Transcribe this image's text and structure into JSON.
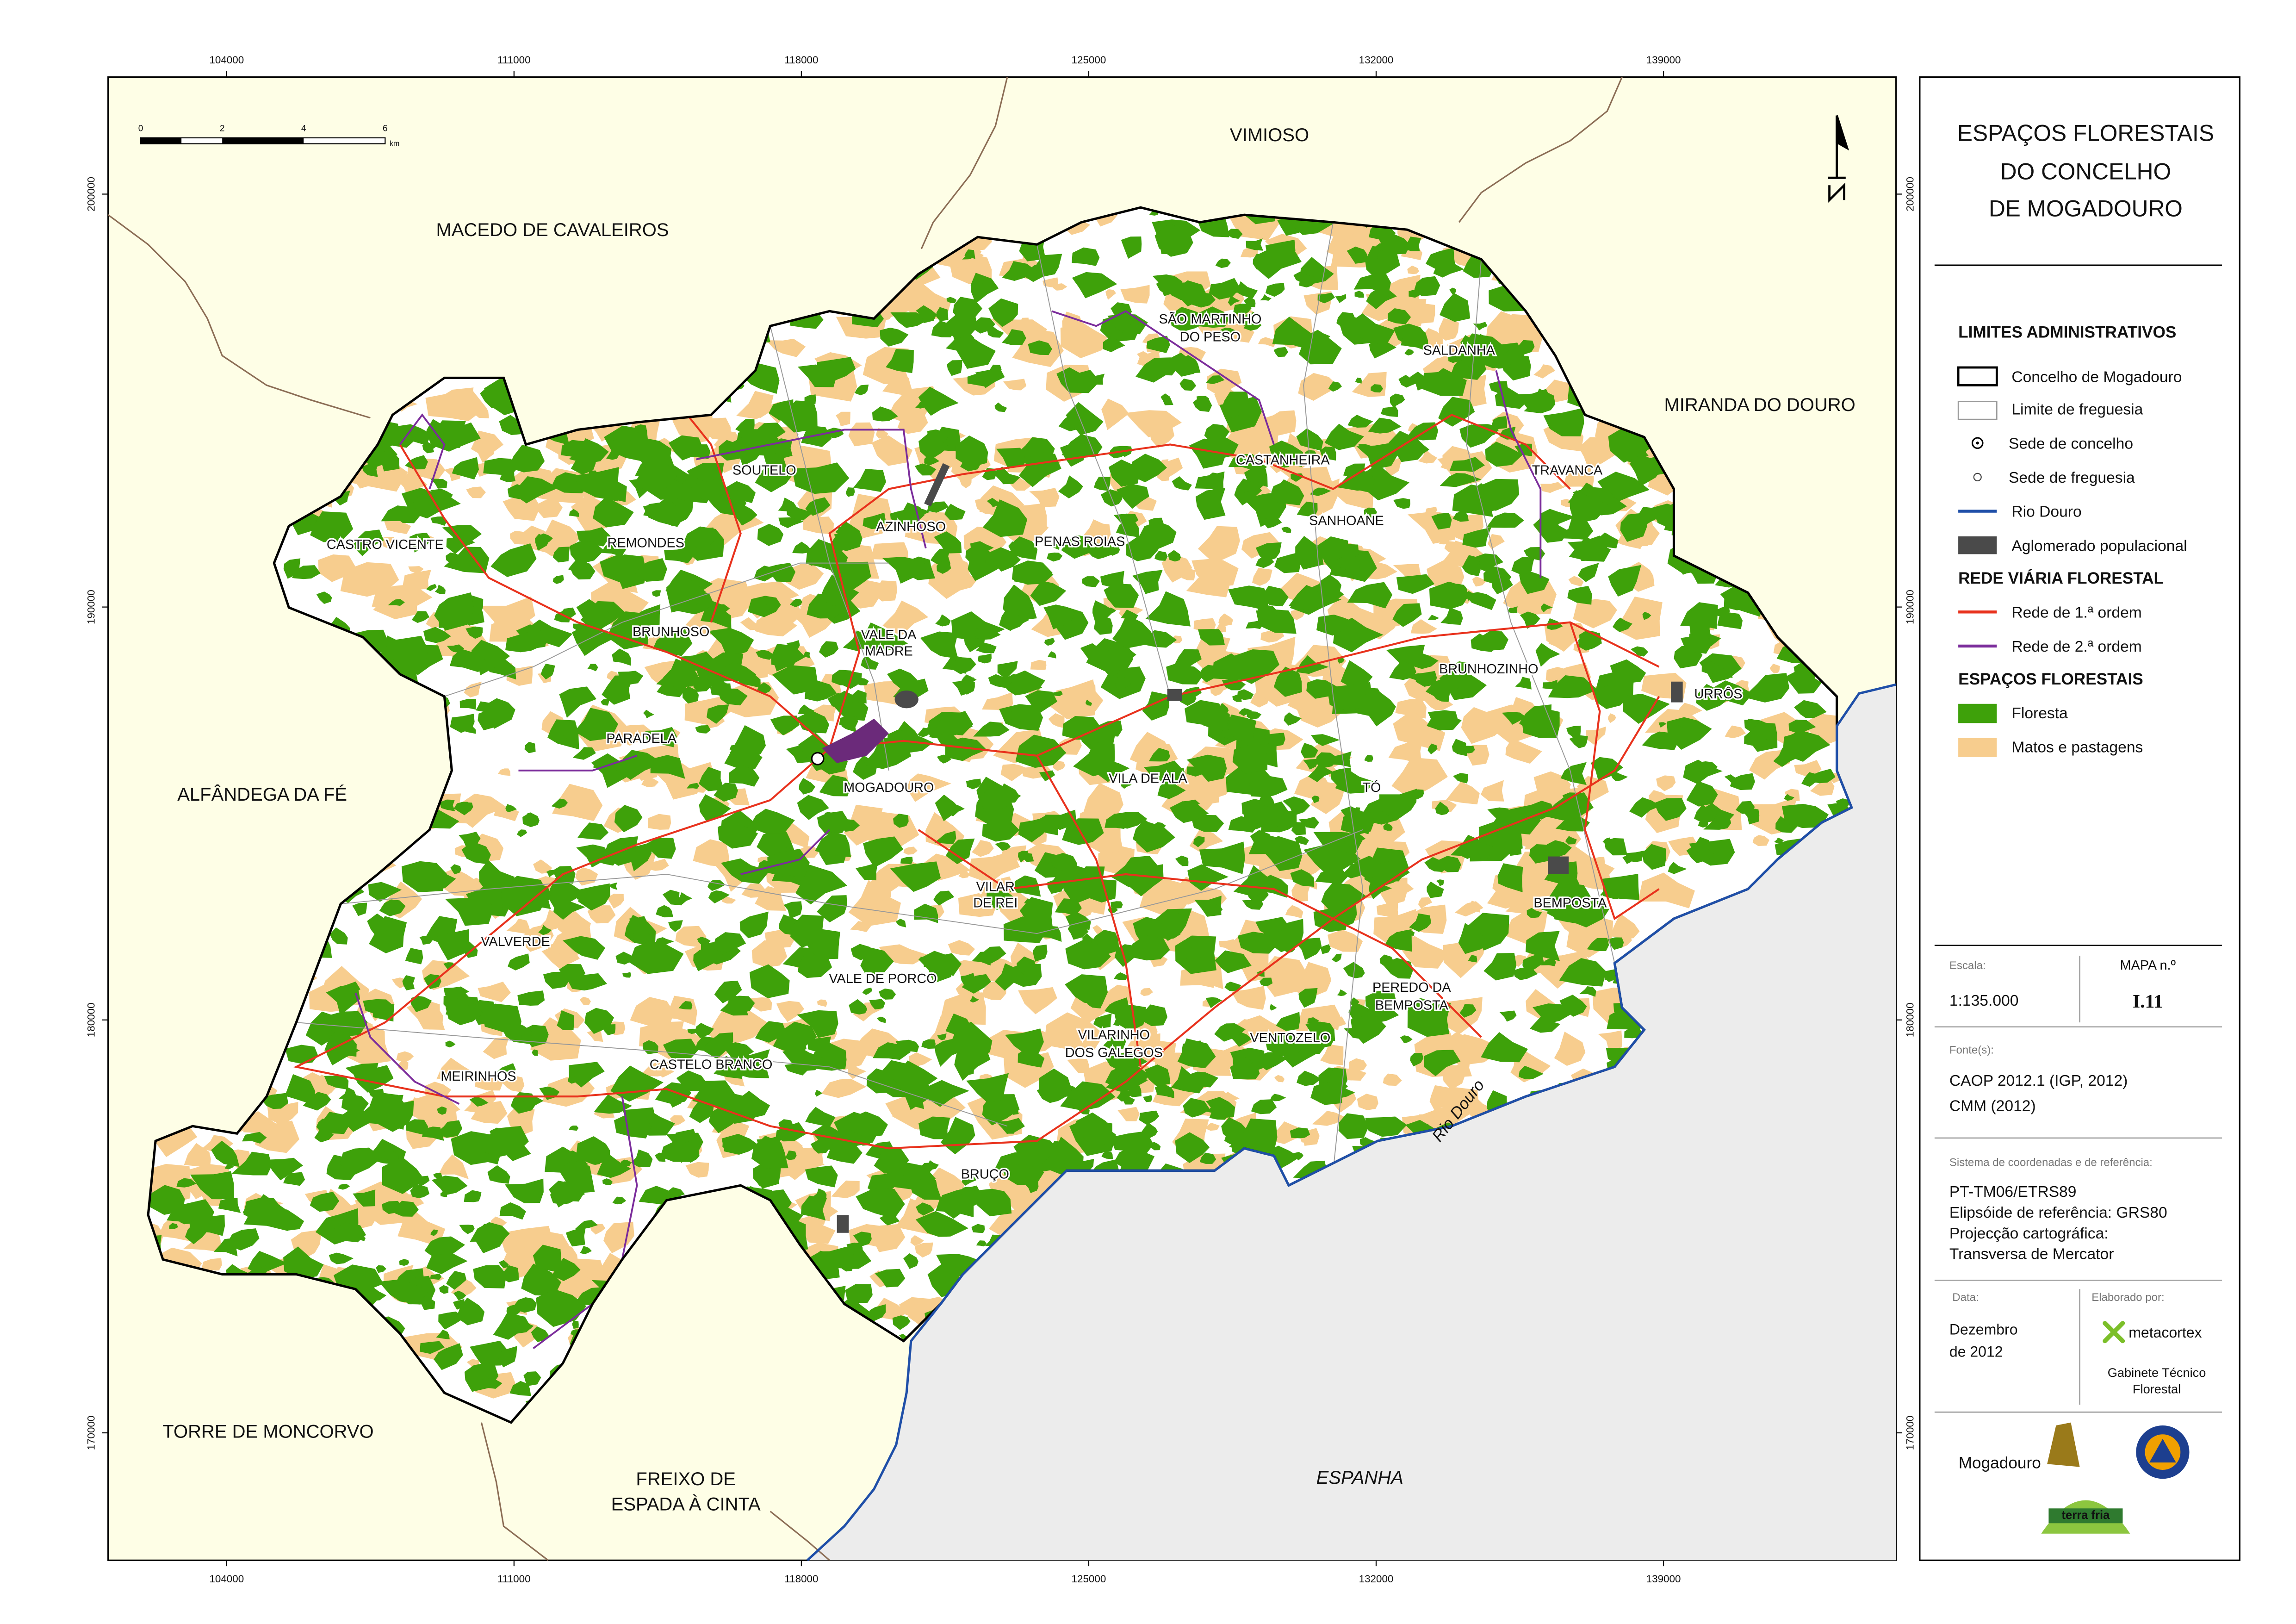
{
  "header": {
    "title": [
      "ESPAÇOS FLORESTAIS",
      "DO CONCELHO",
      "DE MOGADOURO"
    ]
  },
  "grid": {
    "x_ticks": [
      104000,
      111000,
      118000,
      125000,
      132000,
      139000
    ],
    "y_ticks": [
      200000,
      190000,
      180000,
      170000
    ]
  },
  "scale_bar": {
    "labels": [
      0,
      2,
      4,
      6
    ],
    "unit": "km"
  },
  "neighbours": [
    "VIMIOSO",
    "MACEDO DE CAVALEIROS",
    "MIRANDA DO DOURO",
    "ALFÂNDEGA DA FÉ",
    "TORRE DE MONCORVO",
    [
      "FREIXO DE",
      "ESPADA À CINTA"
    ],
    "ESPANHA"
  ],
  "river_label": "Rio Douro",
  "parishes": [
    "SOUTELO",
    [
      "SÃO MARTINHO",
      "DO PESO"
    ],
    "SALDANHA",
    "CASTANHEIRA",
    "TRAVANCA",
    "AZINHOSO",
    "PENAS ROIAS",
    "SANHOANE",
    "CASTRO VICENTE",
    "REMONDES",
    "BRUNHOSO",
    [
      "VALE DA",
      "MADRE"
    ],
    "BRUNHOZINHO",
    "URRÔS",
    "PARADELA",
    "MOGADOURO",
    "VILA DE ALA",
    "TÓ",
    [
      "VILAR",
      "DE REI"
    ],
    "BEMPOSTA",
    "VALVERDE",
    "VALE DE PORCO",
    [
      "PEREDO DA",
      "BEMPOSTA"
    ],
    [
      "VILARINHO",
      "DOS GALEGOS"
    ],
    "VENTOZELO",
    "MEIRINHOS",
    "CASTELO BRANCO",
    "BRUÇO"
  ],
  "legend": {
    "sections": [
      {
        "title": "LIMITES ADMINISTRATIVOS",
        "items": [
          "Concelho de Mogadouro",
          "Limite de freguesia",
          "Sede de concelho",
          "Sede de freguesia",
          "Rio Douro",
          "Aglomerado populacional"
        ]
      },
      {
        "title": "REDE VIÁRIA FLORESTAL",
        "items": [
          "Rede de 1.ª ordem",
          "Rede de 2.ª ordem"
        ]
      },
      {
        "title": "ESPAÇOS FLORESTAIS",
        "items": [
          "Floresta",
          "Matos e pastagens"
        ]
      }
    ]
  },
  "info": {
    "scale_label": "Escala:",
    "scale": "1:135.000",
    "map_label": "MAPA  n.º",
    "map_number": "I.11",
    "sources_label": "Fonte(s):",
    "sources": [
      "CAOP 2012.1 (IGP, 2012)",
      "CMM (2012)"
    ],
    "crs_label": "Sistema de coordenadas e de referência:",
    "crs": [
      "PT-TM06/ETRS89",
      "Elipsóide de referência: GRS80",
      "Projecção cartográfica:",
      "Transversa de Mercator"
    ],
    "date_label": "Data:",
    "date": [
      "Dezembro",
      "de 2012"
    ],
    "author_label": "Elaborado por:",
    "author": "metacortex",
    "author_unit": [
      "Gabinete Técnico",
      "Florestal"
    ],
    "logos": [
      "Mogadouro",
      "terra fria"
    ]
  }
}
